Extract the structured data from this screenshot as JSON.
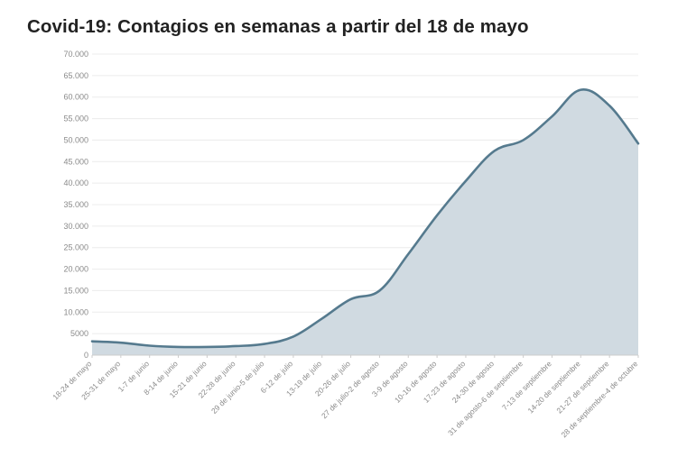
{
  "chart_data": {
    "type": "area",
    "title": "Covid-19: Contagios en semanas a partir del 18 de mayo",
    "xlabel": "",
    "ylabel": "",
    "categories": [
      "18-24 de mayo",
      "25-31 de mayo",
      "1-7 de junio",
      "8-14 de junio",
      "15-21 de junio",
      "22-28 de junio",
      "29 de junio-5 de julio",
      "6-12 de julio",
      "13-19 de julio",
      "20-26 de julio",
      "27 de julio-2 de agosto",
      "3-9 de agosto",
      "10-16 de agosto",
      "17-23 de agosto",
      "24-30 de agosto",
      "31 de agosto-6 de septiembre",
      "7-13 de septiembre",
      "14-20 de septiembre",
      "21-27 de septiembre",
      "28 de septiembre-4 de octubre"
    ],
    "series": [
      {
        "values": [
          3200,
          2900,
          2200,
          1900,
          1900,
          2100,
          2600,
          4300,
          8500,
          13000,
          15000,
          23500,
          32500,
          40500,
          47500,
          50000,
          55500,
          61700,
          58000,
          49200
        ]
      }
    ],
    "ylim": [
      0,
      70000
    ],
    "yticks": [
      0,
      5000,
      10000,
      15000,
      20000,
      25000,
      30000,
      35000,
      40000,
      45000,
      50000,
      55000,
      60000,
      65000,
      70000
    ],
    "ytick_labels": [
      "0",
      "5000",
      "10.000",
      "15.000",
      "20.000",
      "25.000",
      "30.000",
      "35.000",
      "40.000",
      "45.000",
      "50.000",
      "55.000",
      "60.000",
      "65.000",
      "70.000"
    ],
    "grid": true,
    "legend": "none",
    "colors": {
      "line": "#557a8e",
      "fill": "#d0dae1",
      "grid": "#ececec",
      "axis": "#cccccc",
      "text": "#8a8a8a",
      "title": "#222222"
    }
  }
}
